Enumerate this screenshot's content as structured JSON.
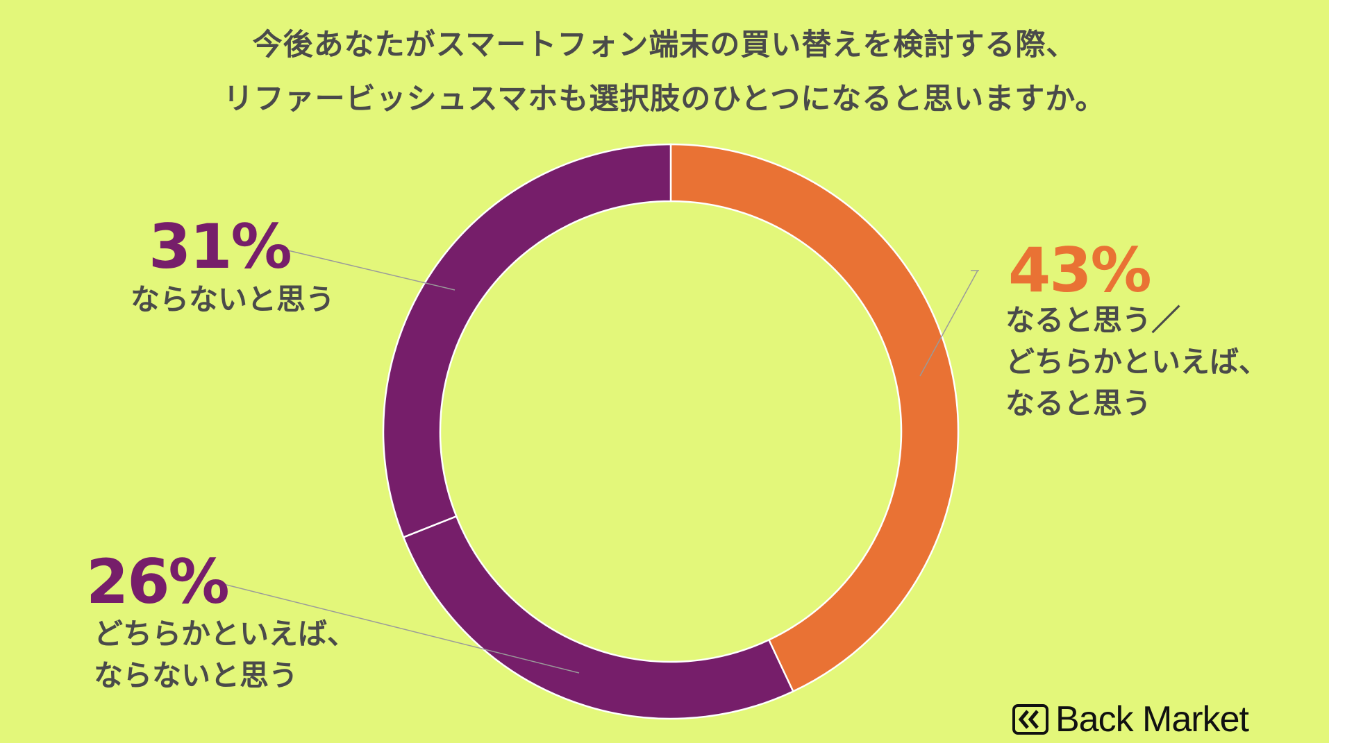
{
  "title_lines": [
    "今後あなたがスマートフォン端末の買い替えを検討する際、",
    "リファービッシュスマホも選択肢のひとつになると思いますか。"
  ],
  "chart_data": {
    "type": "pie",
    "title": "今後あなたがスマートフォン端末の買い替えを検討する際、リファービッシュスマホも選択肢のひとつになると思いますか。",
    "donut": true,
    "slices": [
      {
        "value": 43,
        "value_label": "43%",
        "label_lines": [
          "なると思う／",
          "どちらかといえば、",
          "なると思う"
        ],
        "color": "#e97234"
      },
      {
        "value": 26,
        "value_label": "26%",
        "label_lines": [
          "どちらかといえば、",
          "ならないと思う"
        ],
        "color": "#761e6a"
      },
      {
        "value": 31,
        "value_label": "31%",
        "label_lines": [
          "ならないと思う"
        ],
        "color": "#761e6a"
      }
    ]
  },
  "colors": {
    "background": "#e3f77a",
    "text": "#4a4a4a",
    "orange": "#e97234",
    "purple": "#761e6a"
  },
  "brand": {
    "name": "Back Market",
    "icon": "back-market-chevrons-icon"
  }
}
